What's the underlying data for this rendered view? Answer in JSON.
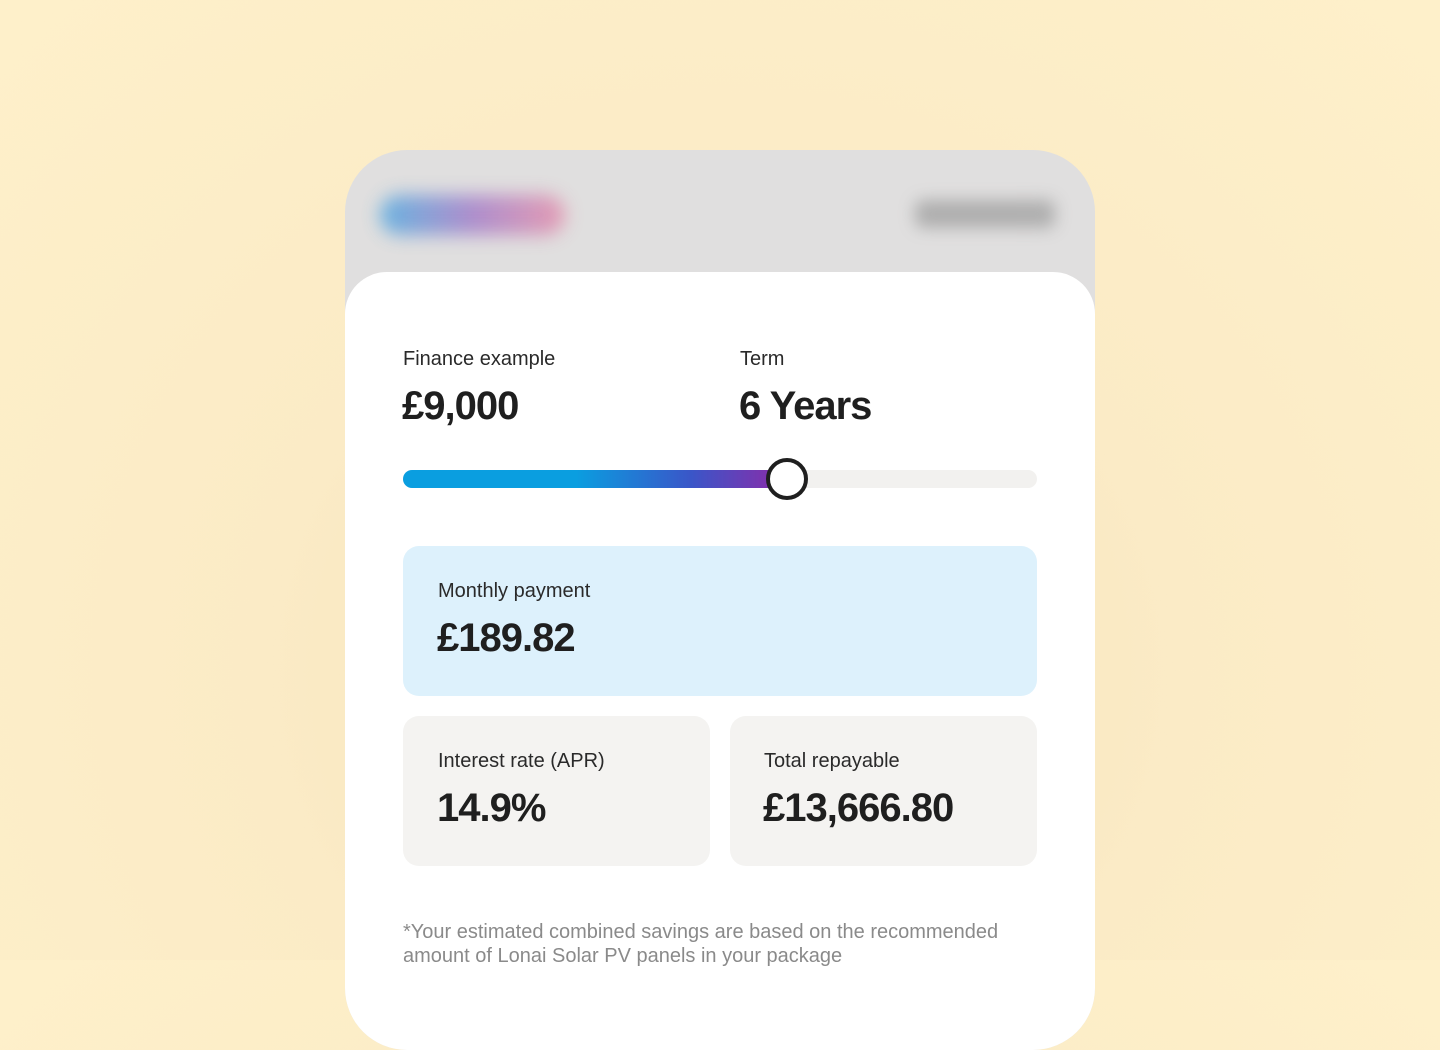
{
  "finance": {
    "label": "Finance example",
    "value": "£9,000"
  },
  "term": {
    "label": "Term",
    "value": "6 Years"
  },
  "monthly_payment": {
    "label": "Monthly payment",
    "value": "£189.82"
  },
  "interest_rate": {
    "label": "Interest rate (APR)",
    "value": "14.9%"
  },
  "total_repayable": {
    "label": "Total repayable",
    "value": "£13,666.80"
  },
  "footnote": "*Your estimated combined savings are based on the recommended amount of Lonai Solar PV panels in your package"
}
